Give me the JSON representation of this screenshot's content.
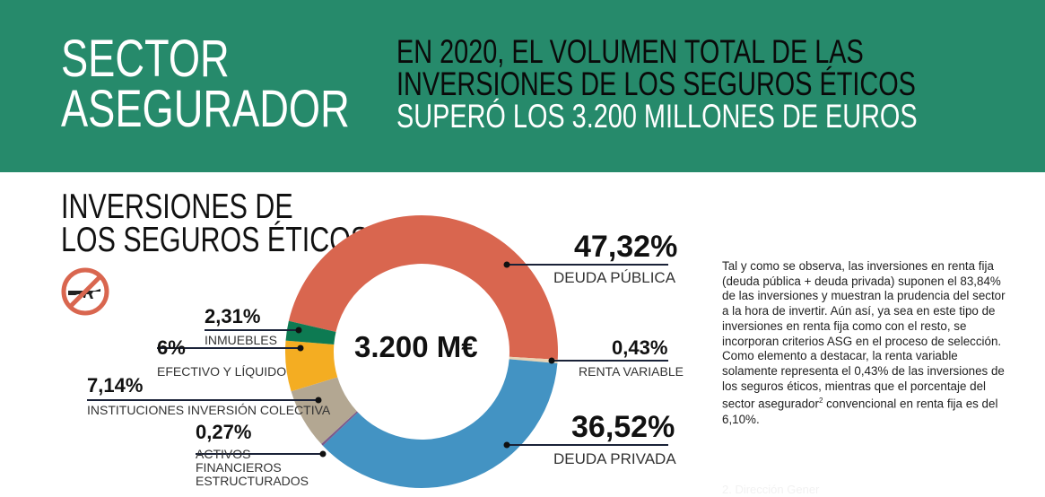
{
  "header": {
    "background": "#268a6b",
    "section_title_lines": [
      "SECTOR",
      "ASEGURADOR"
    ],
    "headline_dark_lines": [
      "EN 2020, EL VOLUMEN TOTAL DE LAS",
      "INVERSIONES DE LOS SEGUROS ÉTICOS"
    ],
    "headline_light_line": "SUPERÓ LOS 3.200 MILLONES DE EUROS"
  },
  "chart_title_lines": [
    "INVERSIONES DE",
    "LOS SEGUROS ÉTICOS"
  ],
  "icon": "no-weapons-icon",
  "chart_data": {
    "type": "pie",
    "donut": true,
    "center_label": "3.200 M€",
    "categories": [
      "DEUDA PÚBLICA",
      "RENTA VARIABLE",
      "DEUDA PRIVADA",
      "ACTIVOS FINANCIEROS ESTRUCTURADOS",
      "INSTITUCIONES INVERSIÓN COLECTIVA",
      "EFECTIVO Y LÍQUIDO",
      "INMUEBLES"
    ],
    "values": [
      47.32,
      0.43,
      36.52,
      0.27,
      7.14,
      6,
      2.31
    ],
    "value_labels": [
      "47,32%",
      "0,43%",
      "36,52%",
      "0,27%",
      "7,14%",
      "6%",
      "2,31%"
    ],
    "colors": [
      "#d9664f",
      "#e9d3b4",
      "#4393c3",
      "#7b5b8c",
      "#b3a792",
      "#f4ad22",
      "#0d7a52"
    ]
  },
  "body_text": "Tal y como se observa, las inversiones en renta fija (deuda pública + deuda privada) suponen el 83,84% de las inversiones y muestran la prudencia del sector a la hora de invertir. Aún así, ya sea en este tipo de inversiones en renta fija como con el resto, se incorporan criterios ASG en el proceso de selección. Como elemento a destacar, la renta variable solamente representa el 0,43% de las inversiones de los seguros éticos, mientras que el porcentaje del sector asegurador",
  "body_text_sup": "2",
  "body_text_end": " convencional en renta fija es del 6,10%.",
  "footnote": "2. Dirección Gener"
}
